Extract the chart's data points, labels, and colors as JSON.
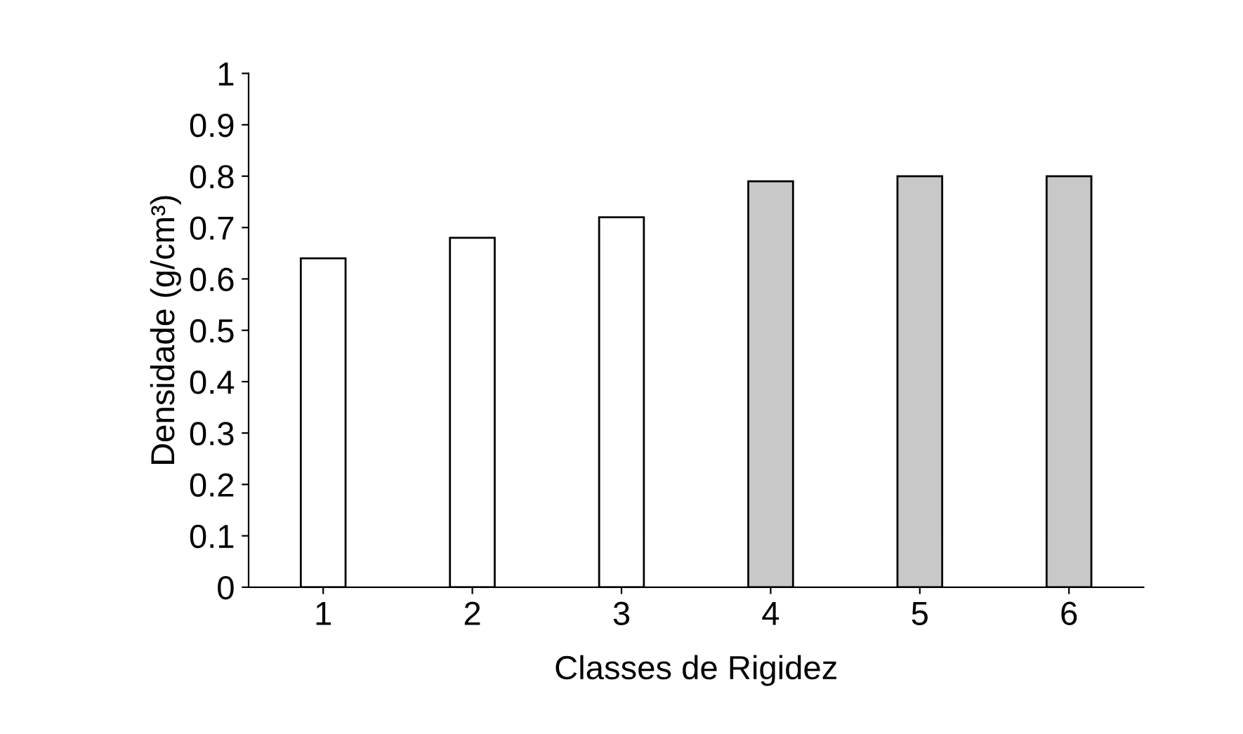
{
  "chart_data": {
    "type": "bar",
    "xlabel": "Classes de Rigidez",
    "ylabel": "Densidade (g/cm³)",
    "categories": [
      "1",
      "2",
      "3",
      "4",
      "5",
      "6"
    ],
    "values": [
      0.64,
      0.68,
      0.72,
      0.79,
      0.8,
      0.8
    ],
    "colors": [
      "#ffffff",
      "#ffffff",
      "#ffffff",
      "#c8c8c8",
      "#c8c8c8",
      "#c8c8c8"
    ],
    "ylim": [
      0,
      1
    ],
    "yticks": [
      0,
      {
        "value": 0.1,
        "label": "0.1"
      },
      {
        "value": 0.2,
        "label": "0.2"
      },
      {
        "value": 0.3,
        "label": "0.3"
      },
      {
        "value": 0.4,
        "label": "0.4"
      },
      {
        "value": 0.5,
        "label": "0.5"
      },
      {
        "value": 0.6,
        "label": "0.6"
      },
      {
        "value": 0.7,
        "label": "0.7"
      },
      {
        "value": 0.8,
        "label": "0.8"
      },
      {
        "value": 0.9,
        "label": "0.9"
      },
      1
    ],
    "grid": false,
    "legend": false
  }
}
